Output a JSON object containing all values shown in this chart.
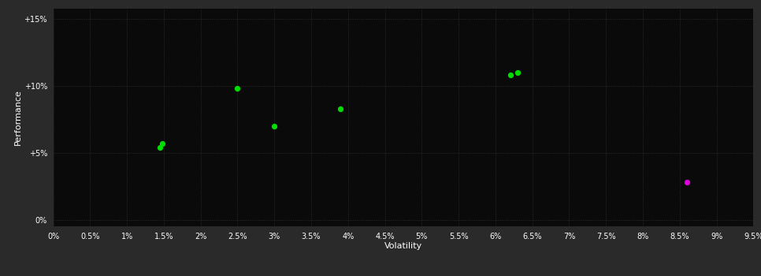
{
  "background_color": "#2a2a2a",
  "plot_bg_color": "#0a0a0a",
  "grid_color": "#3a3a3a",
  "text_color": "#ffffff",
  "xlabel": "Volatility",
  "ylabel": "Performance",
  "x_ticks": [
    0.0,
    0.005,
    0.01,
    0.015,
    0.02,
    0.025,
    0.03,
    0.035,
    0.04,
    0.045,
    0.05,
    0.055,
    0.06,
    0.065,
    0.07,
    0.075,
    0.08,
    0.085,
    0.09,
    0.095
  ],
  "x_tick_labels": [
    "0%",
    "0.5%",
    "1%",
    "1.5%",
    "2%",
    "2.5%",
    "3%",
    "3.5%",
    "4%",
    "4.5%",
    "5%",
    "5.5%",
    "6%",
    "6.5%",
    "7%",
    "7.5%",
    "8%",
    "8.5%",
    "9%",
    "9.5%"
  ],
  "y_ticks": [
    0.0,
    0.05,
    0.1,
    0.15
  ],
  "y_tick_labels": [
    "0%",
    "+5%",
    "+10%",
    "+15%"
  ],
  "xlim": [
    0.0,
    0.095
  ],
  "ylim": [
    -0.005,
    0.158
  ],
  "green_points": [
    [
      0.0145,
      0.054
    ],
    [
      0.0148,
      0.057
    ],
    [
      0.025,
      0.098
    ],
    [
      0.03,
      0.07
    ],
    [
      0.039,
      0.083
    ],
    [
      0.062,
      0.108
    ],
    [
      0.063,
      0.11
    ]
  ],
  "magenta_points": [
    [
      0.086,
      0.028
    ]
  ],
  "green_color": "#00dd00",
  "magenta_color": "#dd00dd",
  "marker_size": 18
}
